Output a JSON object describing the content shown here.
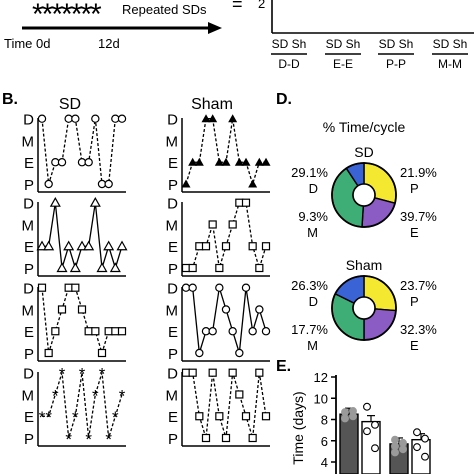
{
  "timeline": {
    "start_label": "Time 0d",
    "end_label": "12d",
    "arrow_label": "Repeated SDs",
    "stars": "*******",
    "equals": "="
  },
  "panel_a_bar": {
    "y_tick": "2",
    "groups": [
      {
        "top": "SD Sh",
        "bottom": "D-D"
      },
      {
        "top": "SD Sh",
        "bottom": "E-E"
      },
      {
        "top": "SD Sh",
        "bottom": "P-P"
      },
      {
        "top": "SD Sh",
        "bottom": "M-M"
      }
    ]
  },
  "panel_b": {
    "letter": "B.",
    "col_titles": [
      "SD",
      "Sham"
    ],
    "y_labels": [
      "D",
      "M",
      "E",
      "P"
    ]
  },
  "panel_d": {
    "letter": "D.",
    "title": "% Time/cycle",
    "colors": {
      "D": "#f5e830",
      "P": "#8a5cc4",
      "E": "#3fae76",
      "M": "#3a63d6"
    },
    "pies": [
      {
        "name": "SD",
        "D": "29.1%",
        "P": "21.9%",
        "M": "9.3%",
        "E": "39.7%",
        "labels": {
          "D": "D",
          "P": "P",
          "M": "M",
          "E": "E"
        }
      },
      {
        "name": "Sham",
        "D": "26.3%",
        "P": "23.7%",
        "M": "17.7%",
        "E": "32.3%",
        "labels": {
          "D": "D",
          "P": "P",
          "M": "M",
          "E": "E"
        }
      }
    ]
  },
  "panel_e": {
    "letter": "E.",
    "ylabel": "Time (days)",
    "yticks": [
      "12",
      "10",
      "8",
      "6",
      "4"
    ]
  },
  "chart_data": [
    {
      "type": "line",
      "title": "SD",
      "y_categories": [
        "P",
        "E",
        "M",
        "D"
      ],
      "series": [
        {
          "marker": "circle",
          "x": [
            0,
            1,
            2,
            3,
            4,
            5,
            6,
            7,
            8,
            9,
            10,
            11,
            12
          ],
          "y": [
            "D",
            "P",
            "E",
            "E",
            "D",
            "D",
            "E",
            "E",
            "D",
            "P",
            "P",
            "D",
            "D"
          ]
        },
        {
          "marker": "triangle",
          "x": [
            0,
            1,
            2,
            3,
            4,
            5,
            6,
            7,
            8,
            9,
            10,
            11,
            12
          ],
          "y": [
            "E",
            "E",
            "D",
            "P",
            "E",
            "P",
            "E",
            "E",
            "D",
            "P",
            "E",
            "P",
            "E"
          ]
        },
        {
          "marker": "square",
          "x": [
            0,
            1,
            2,
            3,
            4,
            5,
            6,
            7,
            8,
            9,
            10,
            11,
            12
          ],
          "y": [
            "D",
            "P",
            "E",
            "M",
            "D",
            "D",
            "M",
            "E",
            "E",
            "P",
            "E",
            "E",
            "E"
          ]
        },
        {
          "marker": "star",
          "x": [
            0,
            1,
            2,
            3,
            4,
            5,
            6,
            7,
            8,
            9,
            10,
            11,
            12
          ],
          "y": [
            "E",
            "E",
            "M",
            "D",
            "P",
            "E",
            "D",
            "P",
            "M",
            "D",
            "P",
            "E",
            "M"
          ]
        }
      ]
    },
    {
      "type": "line",
      "title": "Sham",
      "y_categories": [
        "P",
        "E",
        "M",
        "D"
      ],
      "series": [
        {
          "marker": "filled-triangle",
          "x": [
            0,
            1,
            2,
            3,
            4,
            5,
            6,
            7,
            8,
            9,
            10,
            11,
            12
          ],
          "y": [
            "P",
            "E",
            "E",
            "D",
            "D",
            "E",
            "E",
            "D",
            "E",
            "E",
            "P",
            "E",
            "E"
          ]
        },
        {
          "marker": "square",
          "x": [
            0,
            1,
            2,
            3,
            4,
            5,
            6,
            7,
            8,
            9,
            10,
            11,
            12
          ],
          "y": [
            "P",
            "P",
            "E",
            "E",
            "M",
            "P",
            "E",
            "M",
            "D",
            "D",
            "E",
            "P",
            "E"
          ]
        },
        {
          "marker": "circle",
          "x": [
            0,
            1,
            2,
            3,
            4,
            5,
            6,
            7,
            8,
            9,
            10,
            11,
            12
          ],
          "y": [
            "D",
            "D",
            "P",
            "E",
            "E",
            "D",
            "M",
            "E",
            "P",
            "D",
            "E",
            "M",
            "E"
          ]
        },
        {
          "marker": "square",
          "x": [
            0,
            1,
            2,
            3,
            4,
            5,
            6,
            7,
            8,
            9,
            10,
            11,
            12
          ],
          "y": [
            "D",
            "D",
            "E",
            "P",
            "D",
            "E",
            "P",
            "D",
            "M",
            "E",
            "P",
            "D",
            "E"
          ]
        }
      ]
    },
    {
      "type": "pie",
      "title": "SD",
      "categories": [
        "D",
        "P",
        "E",
        "M"
      ],
      "values": [
        29.1,
        21.9,
        39.7,
        9.3
      ]
    },
    {
      "type": "pie",
      "title": "Sham",
      "categories": [
        "D",
        "P",
        "E",
        "M"
      ],
      "values": [
        26.3,
        23.7,
        32.3,
        17.7
      ]
    },
    {
      "type": "bar",
      "ylabel": "Time (days)",
      "ylim": [
        4,
        12
      ],
      "bars": [
        {
          "value": 8.5,
          "fill": "#555555",
          "points": [
            8.7,
            8.3,
            8.1,
            8.8
          ]
        },
        {
          "value": 7.8,
          "fill": "#ffffff",
          "points": [
            9.2,
            7.5,
            6.9,
            5.3
          ]
        },
        {
          "value": 5.7,
          "fill": "#555555",
          "points": [
            6.1,
            5.8,
            5.5,
            5.2,
            4.9
          ]
        },
        {
          "value": 6.1,
          "fill": "#ffffff",
          "points": [
            6.8,
            6.2,
            5.4,
            4.5
          ]
        }
      ]
    }
  ]
}
